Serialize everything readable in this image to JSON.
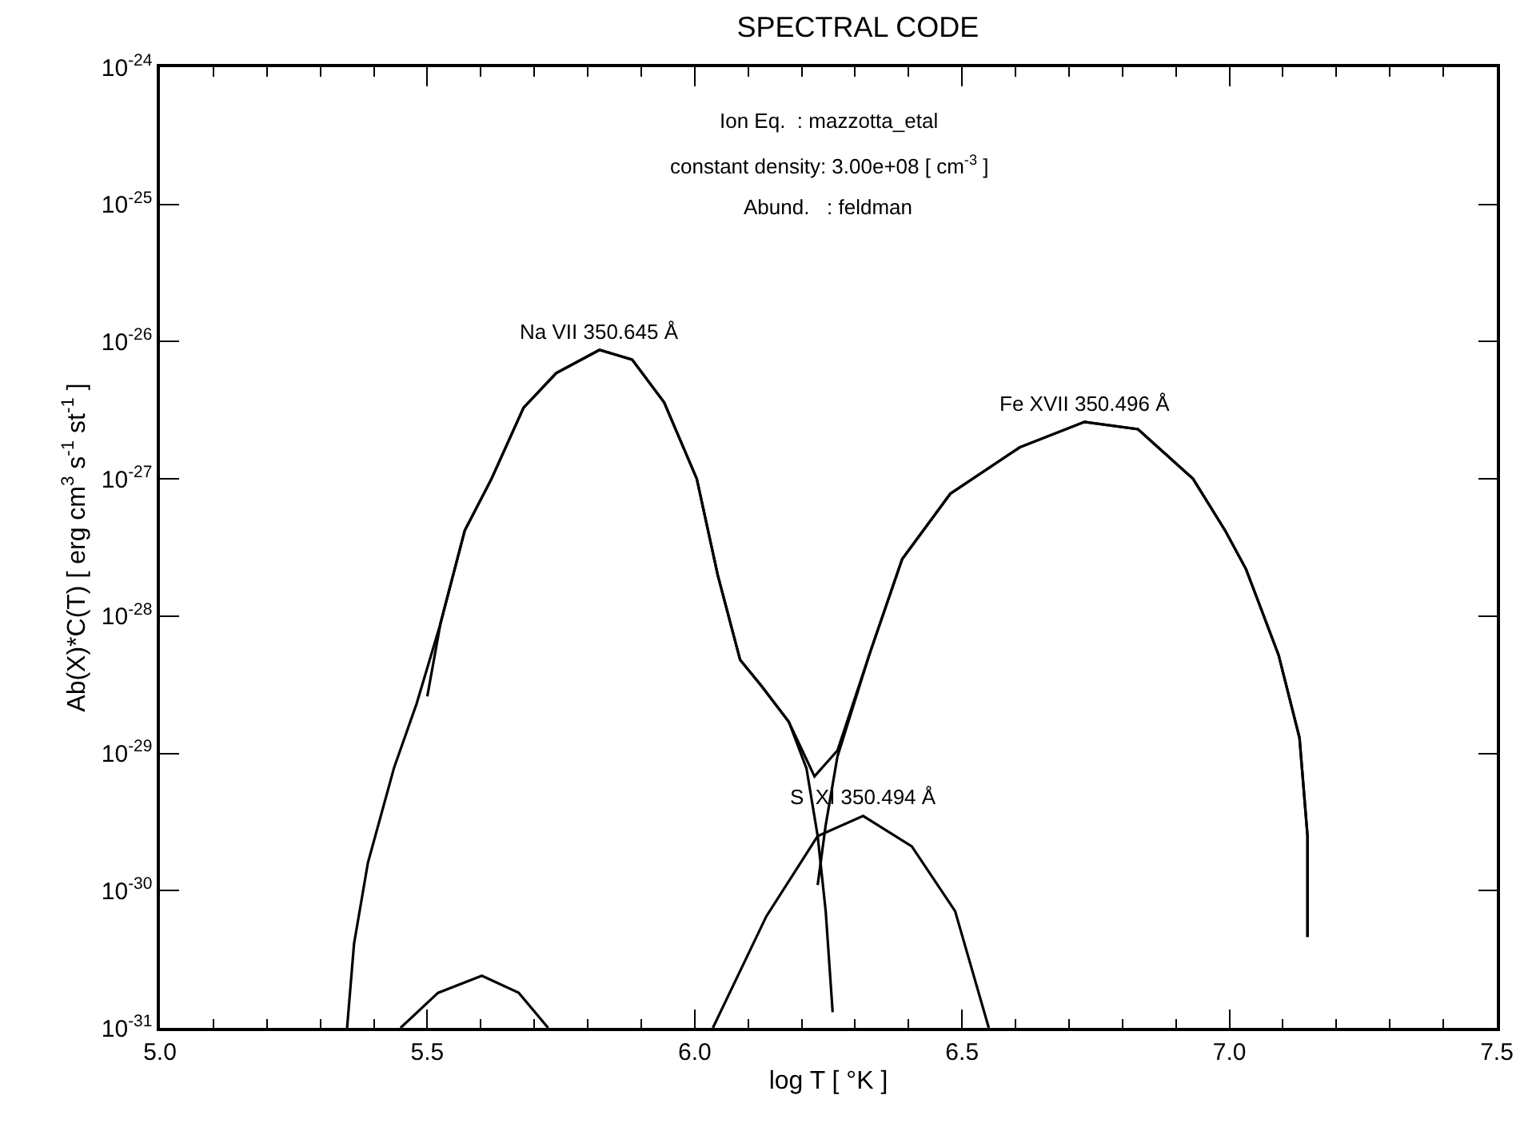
{
  "chart_data": {
    "type": "line",
    "title": "SPECTRAL CODE",
    "xlabel": "log T [ °K ]",
    "ylabel": "Ab(X)*C(T) [ erg cm$^{3}$ s$^{-1}$ st$^{-1}$ ]",
    "annotations": [
      "Ion Eq.  : mazzotta_etal",
      "constant density: 3.00e+08 [ cm$^{-3}$ ]",
      "Abund.   : feldman"
    ],
    "log": "y",
    "legend": false,
    "marker": "none",
    "line_style": "solid",
    "xlim": [
      5.0,
      7.5
    ],
    "xticks": [
      {
        "value": 5.0,
        "label": "5.0"
      },
      {
        "value": 5.5,
        "label": "5.5"
      },
      {
        "value": 6.0,
        "label": "6.0"
      },
      {
        "value": 6.5,
        "label": "6.5"
      },
      {
        "value": 7.0,
        "label": "7.0"
      },
      {
        "value": 7.5,
        "label": "7.5"
      }
    ],
    "ylim": [
      1e-31,
      1e-24
    ],
    "yticks": [
      {
        "value": 1e-31,
        "label": "10$^{-31}$"
      },
      {
        "value": 1e-30,
        "label": "10$^{-30}$"
      },
      {
        "value": 1e-29,
        "label": "10$^{-29}$"
      },
      {
        "value": 1e-28,
        "label": "10$^{-28}$"
      },
      {
        "value": 1e-27,
        "label": "10$^{-27}$"
      },
      {
        "value": 1e-26,
        "label": "10$^{-26}$"
      },
      {
        "value": 1e-25,
        "label": "10$^{-25}$"
      },
      {
        "value": 1e-24,
        "label": "10$^{-24}$"
      }
    ],
    "series": [
      {
        "name": "Na VII 350.645 Å",
        "color": "#000000",
        "x": [
          5.35,
          5.363,
          5.389,
          5.438,
          5.48,
          5.525,
          5.57,
          5.62,
          5.68,
          5.741,
          5.822,
          5.883,
          5.943,
          6.004,
          6.043,
          6.085,
          6.125,
          6.176,
          6.209,
          6.23,
          6.245,
          6.258
        ],
        "values": [
          1e-31,
          4.1e-31,
          1.6e-30,
          7.9e-30,
          2.3e-29,
          8.9e-29,
          4.2e-28,
          1e-27,
          3.3e-27,
          5.9e-27,
          8.7e-27,
          7.4e-27,
          3.6e-27,
          1e-27,
          2e-28,
          4.8e-29,
          3.1e-29,
          1.7e-29,
          7.8e-30,
          2.5e-30,
          7.1e-31,
          1.3e-31
        ]
      },
      {
        "name": "Fe XVII 350.496 Å",
        "color": "#000000",
        "x": [
          6.23,
          6.245,
          6.267,
          6.327,
          6.388,
          6.478,
          6.608,
          6.729,
          6.829,
          6.932,
          6.992,
          7.031,
          7.092,
          7.131,
          7.146,
          7.146
        ],
        "values": [
          1.1e-30,
          3e-30,
          9.5e-30,
          5.3e-29,
          2.6e-28,
          7.8e-28,
          1.7e-27,
          2.6e-27,
          2.3e-27,
          1e-27,
          4.2e-28,
          2.2e-28,
          5.2e-29,
          1.3e-29,
          2.5e-30,
          4.6e-31
        ]
      },
      {
        "name": "S  XI 350.494 Å",
        "color": "#000000",
        "x": [
          6.034,
          6.134,
          6.23,
          6.315,
          6.406,
          6.487,
          6.55
        ],
        "values": [
          1e-31,
          6.5e-31,
          2.5e-30,
          3.5e-30,
          2.1e-30,
          7.1e-31,
          1e-31
        ]
      },
      {
        "color": "#000000",
        "x": [
          5.45,
          5.52,
          5.602,
          5.671,
          5.726
        ],
        "values": [
          1e-31,
          1.8e-31,
          2.4e-31,
          1.8e-31,
          1e-31
        ]
      },
      {
        "color": "#000000",
        "x": [
          5.5,
          5.525,
          5.57,
          5.62,
          5.68,
          5.741,
          5.822,
          5.883,
          5.943,
          6.004,
          6.043,
          6.085,
          6.125,
          6.176,
          6.224,
          6.267,
          6.327,
          6.388,
          6.478,
          6.608,
          6.729,
          6.829,
          6.932,
          6.992,
          7.031,
          7.092,
          7.131,
          7.146,
          7.146
        ],
        "values": [
          2.6e-29,
          9e-29,
          4.2e-28,
          1e-27,
          3.3e-27,
          5.9e-27,
          8.7e-27,
          7.4e-27,
          3.6e-27,
          1e-27,
          2e-28,
          4.8e-29,
          3.1e-29,
          1.7e-29,
          6.8e-30,
          1.05e-29,
          5.3e-29,
          2.6e-28,
          7.8e-28,
          1.7e-27,
          2.6e-27,
          2.3e-27,
          1e-27,
          4.2e-28,
          2.2e-28,
          5.2e-29,
          1.3e-29,
          2.5e-30,
          4.6e-31
        ]
      }
    ]
  }
}
